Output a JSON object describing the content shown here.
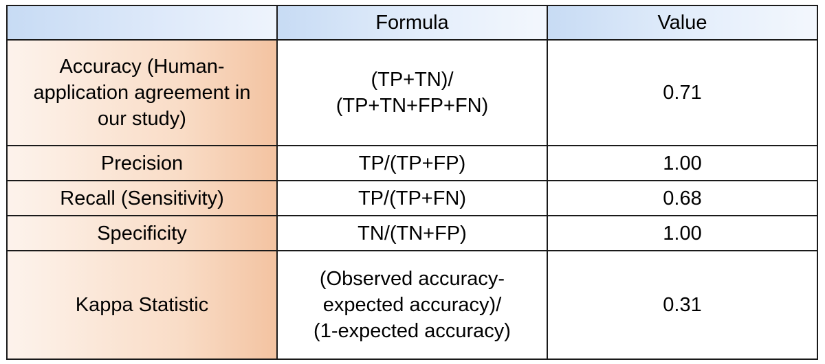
{
  "table": {
    "headers": [
      "",
      "Formula",
      "Value"
    ],
    "rows": [
      {
        "metric": "Accuracy (Human-\napplication agreement in\nour study)",
        "formula": "(TP+TN)/\n(TP+TN+FP+FN)",
        "value": "0.71"
      },
      {
        "metric": "Precision",
        "formula": "TP/(TP+FP)",
        "value": "1.00"
      },
      {
        "metric": "Recall (Sensitivity)",
        "formula": "TP/(TP+FN)",
        "value": "0.68"
      },
      {
        "metric": "Specificity",
        "formula": "TN/(TN+FP)",
        "value": "1.00"
      },
      {
        "metric": "Kappa Statistic",
        "formula": "(Observed accuracy-\nexpected accuracy)/\n(1-expected accuracy)",
        "value": "0.31"
      }
    ]
  },
  "colors": {
    "header_blue": "#c7dbf4",
    "label_peach": "#f3c3a1",
    "border": "#1a1a1a"
  }
}
